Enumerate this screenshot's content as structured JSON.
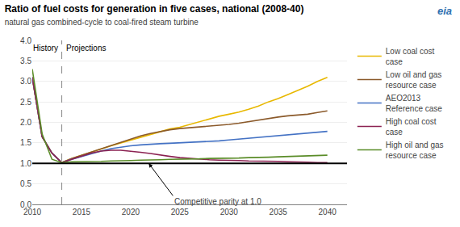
{
  "chart_data": {
    "type": "line",
    "title": "Ratio of fuel costs for generation in five cases, national (2008-40)",
    "subtitle": "natural gas combined-cycle to coal-fired steam turbine",
    "annotations": [
      "History",
      "Projections",
      "Competitive parity at 1.0",
      "eia"
    ],
    "x": [
      2010,
      2011,
      2012,
      2013,
      2014,
      2015,
      2016,
      2017,
      2018,
      2019,
      2020,
      2021,
      2022,
      2023,
      2024,
      2025,
      2026,
      2027,
      2028,
      2029,
      2030,
      2031,
      2032,
      2033,
      2034,
      2035,
      2036,
      2037,
      2038,
      2039,
      2040
    ],
    "series": [
      {
        "name": "Low coal cost\ncase",
        "color": "#e8b800",
        "values": [
          3.1,
          1.65,
          1.25,
          1.02,
          1.12,
          1.2,
          1.28,
          1.36,
          1.43,
          1.5,
          1.57,
          1.63,
          1.7,
          1.77,
          1.84,
          1.88,
          1.95,
          2.02,
          2.08,
          2.15,
          2.2,
          2.25,
          2.32,
          2.4,
          2.5,
          2.58,
          2.68,
          2.78,
          2.88,
          3.0,
          3.1
        ]
      },
      {
        "name": "Low oil and gas\nresource case",
        "color": "#8b5a2b",
        "values": [
          3.1,
          1.65,
          1.25,
          1.02,
          1.12,
          1.2,
          1.28,
          1.36,
          1.44,
          1.52,
          1.6,
          1.67,
          1.73,
          1.78,
          1.82,
          1.85,
          1.87,
          1.89,
          1.9,
          1.92,
          1.95,
          1.98,
          2.02,
          2.06,
          2.1,
          2.13,
          2.16,
          2.18,
          2.2,
          2.24,
          2.28
        ]
      },
      {
        "name": "AEO2013\nReference case",
        "color": "#4472c4",
        "values": [
          3.1,
          1.65,
          1.25,
          1.02,
          1.1,
          1.17,
          1.24,
          1.3,
          1.36,
          1.4,
          1.43,
          1.45,
          1.47,
          1.48,
          1.49,
          1.5,
          1.51,
          1.52,
          1.53,
          1.55,
          1.57,
          1.59,
          1.61,
          1.63,
          1.65,
          1.67,
          1.69,
          1.72,
          1.74,
          1.76,
          1.78
        ]
      },
      {
        "name": "High coal cost\ncase",
        "color": "#8b2252",
        "values": [
          3.1,
          1.65,
          1.25,
          1.02,
          1.1,
          1.18,
          1.25,
          1.3,
          1.32,
          1.32,
          1.3,
          1.27,
          1.24,
          1.2,
          1.17,
          1.14,
          1.12,
          1.1,
          1.09,
          1.08,
          1.08,
          1.07,
          1.06,
          1.06,
          1.05,
          1.05,
          1.04,
          1.04,
          1.03,
          1.02,
          1.02
        ]
      },
      {
        "name": "High oil and gas\nresource case",
        "color": "#5a8c28",
        "values": [
          3.3,
          1.72,
          1.1,
          1.02,
          1.04,
          1.04,
          1.05,
          1.05,
          1.06,
          1.06,
          1.07,
          1.08,
          1.08,
          1.09,
          1.1,
          1.1,
          1.11,
          1.11,
          1.12,
          1.12,
          1.13,
          1.13,
          1.14,
          1.14,
          1.15,
          1.16,
          1.17,
          1.17,
          1.18,
          1.19,
          1.2
        ]
      }
    ],
    "hlines": [
      1.0
    ],
    "vlines": [
      2013
    ],
    "xlim": [
      2010,
      2042
    ],
    "xticks": [
      2010,
      2015,
      2020,
      2025,
      2030,
      2035,
      2040
    ],
    "ylim": [
      0.0,
      4.0
    ],
    "yticks": [
      {
        "value": 0.0,
        "label": "0.0"
      },
      0.5,
      {
        "value": 1.0,
        "label": "1.0"
      },
      1.5,
      {
        "value": 2.0,
        "label": "2.0"
      },
      2.5,
      {
        "value": 3.0,
        "label": "3.0"
      },
      3.5,
      {
        "value": 4.0,
        "label": "4.0"
      }
    ],
    "grid": "y",
    "legend": "right"
  }
}
